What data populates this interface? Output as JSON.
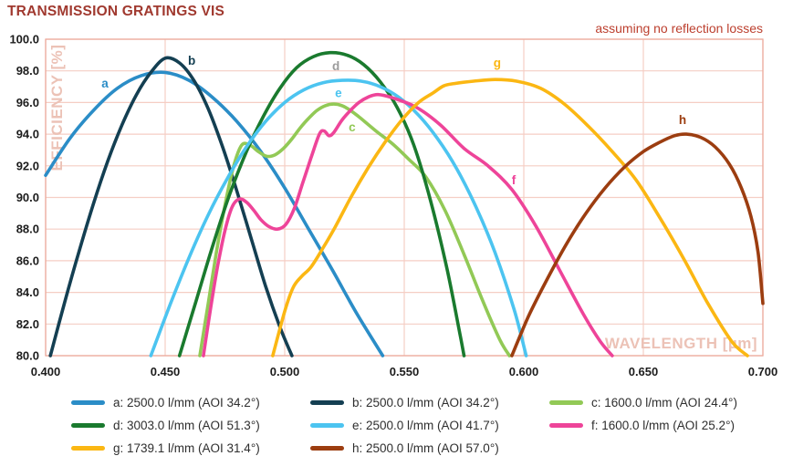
{
  "chart_data": {
    "type": "line",
    "title": "TRANSMISSION GRATINGS VIS",
    "annotation": "assuming no reflection losses",
    "xlabel": "WAVELENGTH [µm]",
    "ylabel": "EFFICIENCY [%]",
    "xlim": [
      0.4,
      0.7
    ],
    "ylim": [
      80.0,
      100.0
    ],
    "grid": true,
    "legend_position": "bottom",
    "x_ticks": [
      {
        "value": 0.4,
        "label": "0.400"
      },
      {
        "value": 0.45,
        "label": "0.450"
      },
      {
        "value": 0.5,
        "label": "0.500"
      },
      {
        "value": 0.55,
        "label": "0.550"
      },
      {
        "value": 0.6,
        "label": "0.600"
      },
      {
        "value": 0.65,
        "label": "0.650"
      },
      {
        "value": 0.7,
        "label": "0.700"
      }
    ],
    "y_ticks": [
      {
        "value": 100.0,
        "label": "100.0"
      },
      {
        "value": 98.0,
        "label": "98.0"
      },
      {
        "value": 96.0,
        "label": "96.0"
      },
      {
        "value": 94.0,
        "label": "94.0"
      },
      {
        "value": 92.0,
        "label": "92.0"
      },
      {
        "value": 90.0,
        "label": "90.0"
      },
      {
        "value": 88.0,
        "label": "88.0"
      },
      {
        "value": 86.0,
        "label": "86.0"
      },
      {
        "value": 84.0,
        "label": "84.0"
      },
      {
        "value": 82.0,
        "label": "82.0"
      },
      {
        "value": 80.0,
        "label": "80.0"
      }
    ],
    "colors": {
      "title": "#a0392f",
      "annotation": "#bc3f2e",
      "axis_title": "#ecc2b6",
      "grid": "#f5cec4",
      "border": "#ecab9e",
      "tick_text": "#1c1c1c",
      "legend_text": "#2e2e2e"
    },
    "series": [
      {
        "id": "a",
        "legend": "a: 2500.0 l/mm (AOI 34.2°)",
        "color": "#2b8dc7",
        "curve_label": "a",
        "curve_label_color": "#2b8dc7",
        "curve_label_pos": [
          0.4248,
          97.2
        ],
        "points": [
          [
            0.4,
            91.4
          ],
          [
            0.41,
            93.7
          ],
          [
            0.42,
            95.5
          ],
          [
            0.43,
            96.9
          ],
          [
            0.44,
            97.7
          ],
          [
            0.45,
            97.9
          ],
          [
            0.46,
            97.4
          ],
          [
            0.47,
            96.3
          ],
          [
            0.48,
            94.8
          ],
          [
            0.49,
            92.9
          ],
          [
            0.5,
            90.6
          ],
          [
            0.51,
            88.0
          ],
          [
            0.52,
            85.4
          ],
          [
            0.53,
            82.7
          ],
          [
            0.541,
            80.0
          ]
        ]
      },
      {
        "id": "b",
        "legend": "b: 2500.0 l/mm (AOI 34.2°)",
        "color": "#143f52",
        "curve_label": "b",
        "curve_label_color": "#143f52",
        "curve_label_pos": [
          0.4611,
          98.65
        ],
        "points": [
          [
            0.402,
            80.0
          ],
          [
            0.408,
            83.4
          ],
          [
            0.414,
            86.6
          ],
          [
            0.42,
            89.6
          ],
          [
            0.426,
            92.3
          ],
          [
            0.432,
            94.6
          ],
          [
            0.438,
            96.5
          ],
          [
            0.444,
            97.9
          ],
          [
            0.45,
            98.8
          ],
          [
            0.456,
            98.5
          ],
          [
            0.462,
            97.4
          ],
          [
            0.468,
            95.6
          ],
          [
            0.474,
            93.2
          ],
          [
            0.48,
            90.4
          ],
          [
            0.486,
            87.4
          ],
          [
            0.492,
            84.4
          ],
          [
            0.498,
            81.8
          ],
          [
            0.503,
            80.0
          ]
        ]
      },
      {
        "id": "c",
        "legend": "c: 1600.0 l/mm (AOI 24.4°)",
        "color": "#92c956",
        "curve_label": "c",
        "curve_label_color": "#92c956",
        "curve_label_pos": [
          0.5282,
          94.45
        ],
        "points": [
          [
            0.4645,
            80.0
          ],
          [
            0.468,
            83.3
          ],
          [
            0.4715,
            86.6
          ],
          [
            0.475,
            89.5
          ],
          [
            0.4785,
            91.9
          ],
          [
            0.482,
            93.3
          ],
          [
            0.4855,
            93.3
          ],
          [
            0.489,
            92.9
          ],
          [
            0.4925,
            92.6
          ],
          [
            0.496,
            92.7
          ],
          [
            0.4995,
            93.1
          ],
          [
            0.503,
            93.7
          ],
          [
            0.5065,
            94.4
          ],
          [
            0.51,
            95.0
          ],
          [
            0.5135,
            95.5
          ],
          [
            0.517,
            95.8
          ],
          [
            0.5205,
            95.9
          ],
          [
            0.524,
            95.8
          ],
          [
            0.5275,
            95.5
          ],
          [
            0.531,
            95.1
          ],
          [
            0.535,
            94.6
          ],
          [
            0.539,
            94.1
          ],
          [
            0.545,
            93.4
          ],
          [
            0.552,
            92.4
          ],
          [
            0.559,
            91.3
          ],
          [
            0.567,
            89.2
          ],
          [
            0.575,
            86.4
          ],
          [
            0.583,
            83.4
          ],
          [
            0.59,
            81.0
          ],
          [
            0.594,
            80.0
          ]
        ]
      },
      {
        "id": "d",
        "legend": "d: 3003.0 l/mm (AOI 51.3°)",
        "color": "#1a7a2e",
        "curve_label": "d",
        "curve_label_color": "#9b9b9b",
        "curve_label_pos": [
          0.5214,
          98.3
        ],
        "points": [
          [
            0.456,
            80.0
          ],
          [
            0.463,
            83.5
          ],
          [
            0.47,
            87.0
          ],
          [
            0.477,
            90.2
          ],
          [
            0.484,
            92.9
          ],
          [
            0.491,
            95.1
          ],
          [
            0.498,
            96.9
          ],
          [
            0.505,
            98.2
          ],
          [
            0.512,
            98.9
          ],
          [
            0.519,
            99.15
          ],
          [
            0.526,
            99.0
          ],
          [
            0.533,
            98.4
          ],
          [
            0.54,
            97.3
          ],
          [
            0.547,
            95.7
          ],
          [
            0.554,
            93.3
          ],
          [
            0.561,
            89.8
          ],
          [
            0.568,
            85.4
          ],
          [
            0.5735,
            81.2
          ],
          [
            0.575,
            80.0
          ]
        ]
      },
      {
        "id": "e",
        "legend": "e: 2500.0 l/mm (AOI 41.7°)",
        "color": "#4cc4f0",
        "curve_label": "e",
        "curve_label_color": "#4cc4f0",
        "curve_label_pos": [
          0.5225,
          96.6
        ],
        "points": [
          [
            0.444,
            80.0
          ],
          [
            0.452,
            83.2
          ],
          [
            0.46,
            86.2
          ],
          [
            0.468,
            88.9
          ],
          [
            0.476,
            91.2
          ],
          [
            0.484,
            93.2
          ],
          [
            0.492,
            94.8
          ],
          [
            0.5,
            96.0
          ],
          [
            0.508,
            96.8
          ],
          [
            0.516,
            97.25
          ],
          [
            0.524,
            97.4
          ],
          [
            0.532,
            97.35
          ],
          [
            0.54,
            97.0
          ],
          [
            0.548,
            96.3
          ],
          [
            0.556,
            95.2
          ],
          [
            0.564,
            93.7
          ],
          [
            0.572,
            91.8
          ],
          [
            0.58,
            89.4
          ],
          [
            0.588,
            86.5
          ],
          [
            0.596,
            82.9
          ],
          [
            0.601,
            80.0
          ]
        ]
      },
      {
        "id": "f",
        "legend": "f: 1600.0 l/mm (AOI 25.2°)",
        "color": "#ee4499",
        "curve_label": "f",
        "curve_label_color": "#ee4499",
        "curve_label_pos": [
          0.5958,
          91.1
        ],
        "points": [
          [
            0.466,
            80.0
          ],
          [
            0.469,
            83.0
          ],
          [
            0.472,
            85.7
          ],
          [
            0.475,
            87.9
          ],
          [
            0.478,
            89.4
          ],
          [
            0.481,
            89.9
          ],
          [
            0.484,
            89.7
          ],
          [
            0.487,
            89.2
          ],
          [
            0.49,
            88.6
          ],
          [
            0.4935,
            88.15
          ],
          [
            0.497,
            88.0
          ],
          [
            0.5005,
            88.3
          ],
          [
            0.504,
            89.3
          ],
          [
            0.5075,
            90.9
          ],
          [
            0.511,
            92.5
          ],
          [
            0.5145,
            94.0
          ],
          [
            0.5165,
            94.2
          ],
          [
            0.5185,
            93.9
          ],
          [
            0.5205,
            94.1
          ],
          [
            0.524,
            94.9
          ],
          [
            0.5275,
            95.5
          ],
          [
            0.531,
            96.0
          ],
          [
            0.535,
            96.35
          ],
          [
            0.539,
            96.5
          ],
          [
            0.545,
            96.3
          ],
          [
            0.555,
            95.7
          ],
          [
            0.565,
            94.6
          ],
          [
            0.575,
            93.1
          ],
          [
            0.585,
            92.0
          ],
          [
            0.595,
            90.5
          ],
          [
            0.605,
            88.2
          ],
          [
            0.615,
            85.4
          ],
          [
            0.625,
            82.6
          ],
          [
            0.632,
            80.9
          ],
          [
            0.637,
            80.0
          ]
        ]
      },
      {
        "id": "g",
        "legend": "g: 1739.1 l/mm (AOI 31.4°)",
        "color": "#fbb713",
        "curve_label": "g",
        "curve_label_color": "#fbb713",
        "curve_label_pos": [
          0.5889,
          98.5
        ],
        "points": [
          [
            0.495,
            80.0
          ],
          [
            0.5,
            82.8
          ],
          [
            0.5035,
            84.3
          ],
          [
            0.507,
            85.0
          ],
          [
            0.511,
            85.6
          ],
          [
            0.516,
            86.8
          ],
          [
            0.521,
            88.1
          ],
          [
            0.528,
            90.1
          ],
          [
            0.535,
            91.9
          ],
          [
            0.542,
            93.5
          ],
          [
            0.549,
            94.9
          ],
          [
            0.556,
            96.0
          ],
          [
            0.562,
            96.6
          ],
          [
            0.5665,
            97.05
          ],
          [
            0.571,
            97.2
          ],
          [
            0.579,
            97.35
          ],
          [
            0.588,
            97.45
          ],
          [
            0.597,
            97.35
          ],
          [
            0.607,
            96.9
          ],
          [
            0.617,
            95.9
          ],
          [
            0.627,
            94.5
          ],
          [
            0.637,
            92.9
          ],
          [
            0.647,
            91.1
          ],
          [
            0.657,
            88.7
          ],
          [
            0.667,
            86.1
          ],
          [
            0.677,
            83.3
          ],
          [
            0.687,
            80.9
          ],
          [
            0.6935,
            80.0
          ]
        ]
      },
      {
        "id": "h",
        "legend": "h: 2500.0 l/mm (AOI 57.0°)",
        "color": "#9c3d10",
        "curve_label": "h",
        "curve_label_color": "#9c3d10",
        "curve_label_pos": [
          0.6664,
          94.9
        ],
        "points": [
          [
            0.595,
            80.0
          ],
          [
            0.602,
            82.5
          ],
          [
            0.61,
            84.9
          ],
          [
            0.618,
            87.1
          ],
          [
            0.626,
            89.0
          ],
          [
            0.634,
            90.6
          ],
          [
            0.642,
            91.9
          ],
          [
            0.65,
            92.9
          ],
          [
            0.657,
            93.5
          ],
          [
            0.663,
            93.9
          ],
          [
            0.668,
            94.0
          ],
          [
            0.674,
            93.8
          ],
          [
            0.68,
            93.2
          ],
          [
            0.686,
            92.1
          ],
          [
            0.691,
            90.6
          ],
          [
            0.695,
            88.8
          ],
          [
            0.698,
            86.5
          ],
          [
            0.7,
            83.3
          ]
        ]
      }
    ]
  }
}
